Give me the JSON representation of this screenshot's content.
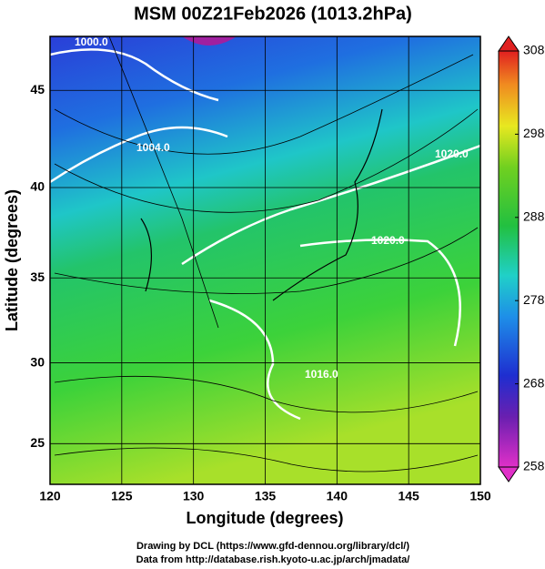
{
  "map": {
    "title": "MSM 00Z21Feb2026 (1013.2hPa)",
    "xlabel": "Longitude (degrees)",
    "ylabel": "Latitude  (degrees)",
    "xlim": [
      120,
      150
    ],
    "ylim": [
      22.4,
      47.6
    ],
    "xticks": [
      120,
      125,
      130,
      135,
      140,
      145,
      150
    ],
    "yticks": [
      25,
      30,
      35,
      40,
      45
    ],
    "colorbar": {
      "lim": [
        258,
        308
      ],
      "ticks": [
        258,
        268,
        278,
        288,
        298,
        308
      ]
    },
    "contour_labels": [
      "1000.0",
      "1004.0",
      "1020.0",
      "1020.0",
      "1016.0"
    ],
    "credits": [
      "Drawing by DCL (https://www.gfd-dennou.org/library/dcl/)",
      "Data from http://database.rish.kyoto-u.ac.jp/arch/jmadata/"
    ]
  }
}
